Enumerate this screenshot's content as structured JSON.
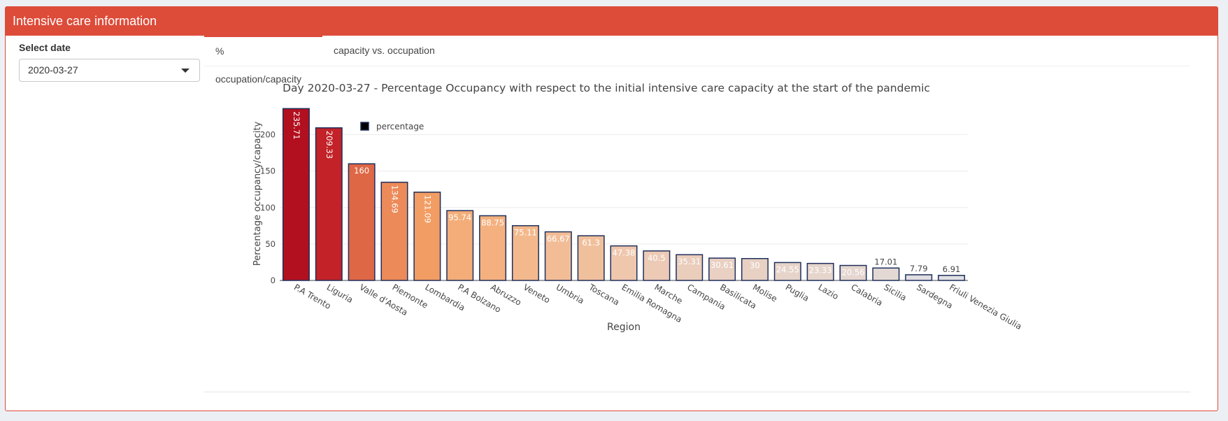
{
  "header": {
    "title": "Intensive care information"
  },
  "sidebar": {
    "date_label": "Select date",
    "date_value": "2020-03-27"
  },
  "tabs": [
    {
      "label": "% occupation/capacity",
      "active": true
    },
    {
      "label": "capacity vs. occupation",
      "active": false
    }
  ],
  "chart_data": {
    "type": "bar",
    "title": "Day 2020-03-27 - Percentage Occupancy with respect to the initial intensive care capacity at the start of the pandemic",
    "xlabel": "Region",
    "ylabel": "Percentage occupancy/capacity",
    "ylim": [
      0,
      236
    ],
    "yticks": [
      0,
      50,
      100,
      150,
      200
    ],
    "grid": true,
    "legend": {
      "entries": [
        "percentage"
      ],
      "placement": "top-left"
    },
    "categories": [
      "P.A Trento",
      "Liguria",
      "Valle d'Aosta",
      "Piemonte",
      "Lombardia",
      "P.A Bolzano",
      "Abruzzo",
      "Veneto",
      "Umbria",
      "Toscana",
      "Emilia Romagna",
      "Marche",
      "Campania",
      "Basilicata",
      "Molise",
      "Puglia",
      "Lazio",
      "Calabria",
      "Sicilia",
      "Sardegna",
      "Friuli Venezia Giulia"
    ],
    "series": [
      {
        "name": "percentage",
        "values": [
          235.71,
          209.33,
          160,
          134.69,
          121.09,
          95.74,
          88.75,
          75.11,
          66.67,
          61.3,
          47.38,
          40.5,
          35.31,
          30.61,
          30,
          24.55,
          23.33,
          20.56,
          17.01,
          7.79,
          6.91
        ],
        "labels": [
          "235.71",
          "209.33",
          "160",
          "134.69",
          "121.09",
          "95.74",
          "88.75",
          "75.11",
          "66.67",
          "61.3",
          "47.38",
          "40.5",
          "35.31",
          "30.61",
          "30",
          "24.55",
          "23.33",
          "20.56",
          "17.01",
          "7.79",
          "6.91"
        ]
      }
    ],
    "colors": {
      "bar_outline": "#1f2f5c",
      "color_scale": [
        "#dde3eb",
        "#eccbb6",
        "#f4b788",
        "#f4a165",
        "#e06b48",
        "#c92a2d",
        "#b2101f"
      ]
    }
  }
}
